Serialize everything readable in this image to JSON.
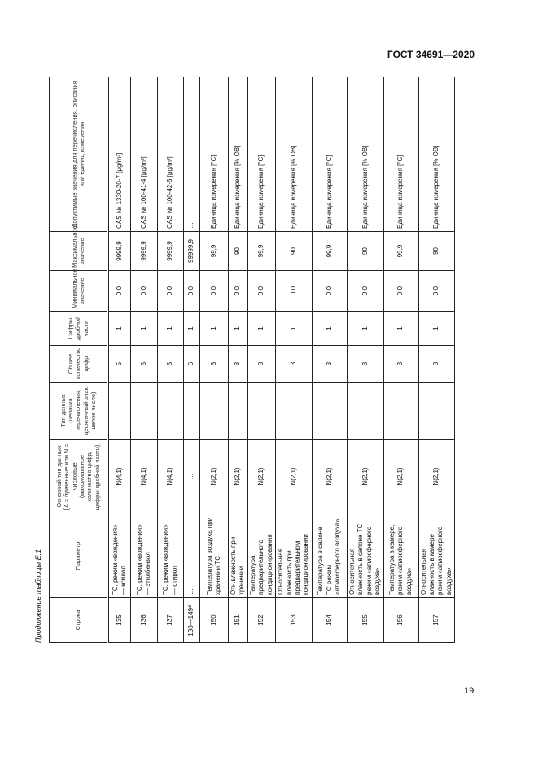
{
  "header": {
    "doc_code": "ГОСТ 34691—2020"
  },
  "caption": "Продолжение таблицы Е.1",
  "page_number": "19",
  "table": {
    "columns": [
      "Строка",
      "Параметр",
      "Основной тип данных [A = буквенные или N = числовые (максимальное количество цифр, цифры дробной части)]",
      "Тип данных (цепочка перечисления, десятичный знак, целое число)",
      "Общее количество цифр",
      "Цифры дробной части",
      "Минимальное значение",
      "Максимальное значение",
      "Допустимые значения для перечисления, описания или единиц измерения"
    ],
    "rows": [
      [
        "135",
        "ТС, режим «вождения» — ксилол",
        "N(4,1)",
        "",
        "5",
        "1",
        "0,0",
        "9999,9",
        "CAS № 1330-20-7 [µg/m³]"
      ],
      [
        "136",
        "ТС, режим «вождения» — этилбензол",
        "N(4,1)",
        "",
        "5",
        "1",
        "0,0",
        "9999,9",
        "CAS № 100-41-4 [µg/m³]"
      ],
      [
        "137",
        "ТС, режим «вождения» — стирол",
        "N(4,1)",
        "",
        "5",
        "1",
        "0,0",
        "9999,9",
        "CAS № 100-42-5 [µg/m³]"
      ],
      [
        "138—149¹⁾",
        "…",
        "…",
        "",
        "6",
        "1",
        "0,0",
        "99999,9",
        "…"
      ],
      [
        "150",
        "Температура воздуха при хранении ТС",
        "N(2,1)",
        "",
        "3",
        "1",
        "0,0",
        "99,9",
        "Единица измерения [°C]"
      ],
      [
        "151",
        "Отн.влажность при хранении",
        "N(2,1)",
        "",
        "3",
        "1",
        "0,0",
        "90",
        "Единица измерения [% ОВ]"
      ],
      [
        "152",
        "Температура предварительного кондиционирования",
        "N(2,1)",
        "",
        "3",
        "1",
        "0,0",
        "99,9",
        "Единица измерения [°C]"
      ],
      [
        "153",
        "Относительная влажность при предварительном кондиционировании",
        "N(2,1)",
        "",
        "3",
        "1",
        "0,0",
        "90",
        "Единица измерения [% ОВ]"
      ],
      [
        "154",
        "Температура в салоне ТС режим «атмосферного воздуха»",
        "N(2,1)",
        "",
        "3",
        "1",
        "0,0",
        "99,9",
        "Единица измерения [°C]"
      ],
      [
        "155",
        "Относительная влажность в салоне ТС режим «атмосферного воздуха»",
        "N(2,1)",
        "",
        "3",
        "1",
        "0,0",
        "90",
        "Единица измерения [% ОВ]"
      ],
      [
        "156",
        "Температура в камере, режим «атмосферного воздуха»",
        "N(2,1)",
        "",
        "3",
        "1",
        "0,0",
        "99,9",
        "Единица измерения [°C]"
      ],
      [
        "157",
        "Относительная влажность в камере режим «атмосферного воздуха»",
        "N(2,1)",
        "",
        "3",
        "1",
        "0,0",
        "90",
        "Единица измерения [% ОВ]"
      ]
    ]
  }
}
